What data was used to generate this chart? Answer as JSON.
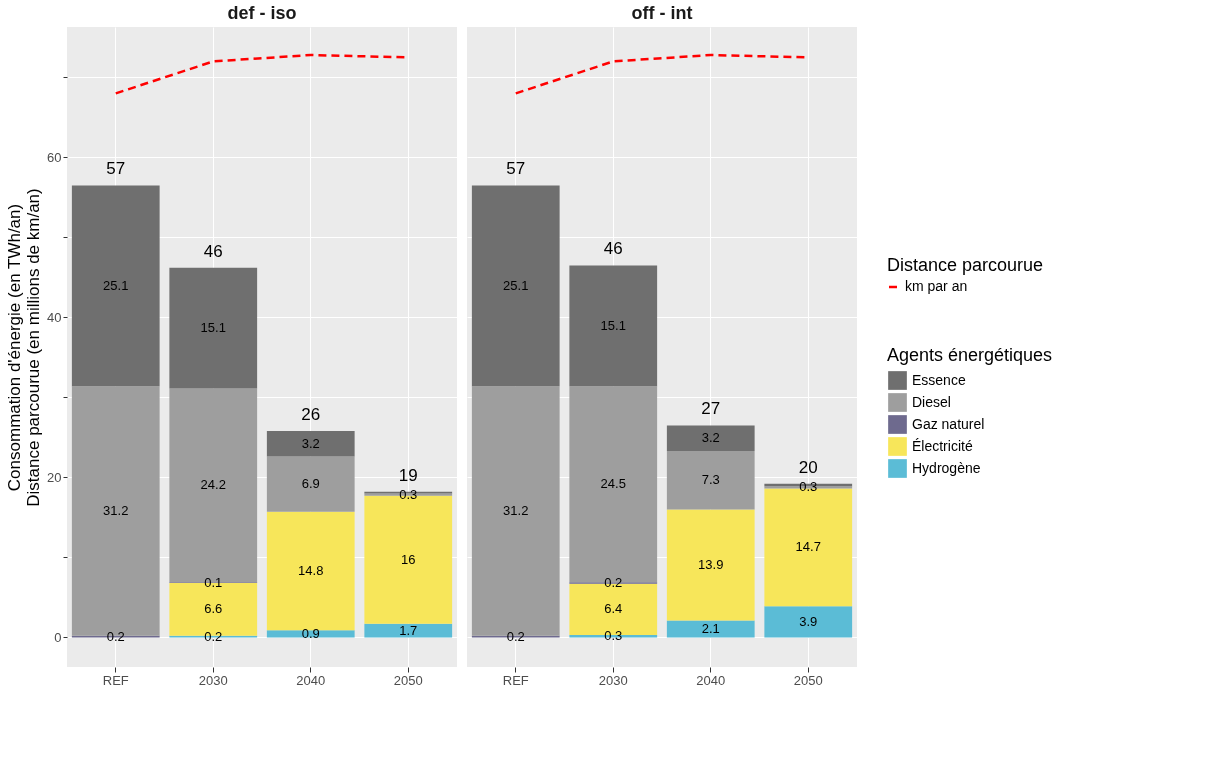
{
  "chart_data": [
    {
      "type": "bar",
      "title": "def - iso",
      "ylabel": "Consommation d'énergie (en TWh/an)\nDistance parcourue (en millions de km/an)",
      "legend_title": [
        "Distance parcourue",
        "Agents énergétiques"
      ],
      "legend": "right",
      "stacked": true,
      "grid": true,
      "categories": [
        "REF",
        "2030",
        "2040",
        "2050"
      ],
      "ylim": [
        -3.7,
        76.3
      ],
      "yticks": [
        0,
        {
          "value": 10,
          "label": null
        },
        20,
        {
          "value": 30,
          "label": null
        },
        40,
        {
          "value": 50,
          "label": null
        },
        60,
        {
          "value": 70,
          "label": null
        }
      ],
      "series": [
        {
          "name": "Hydrogène",
          "color": "#5bbcd6",
          "values": [
            null,
            0.2,
            0.9,
            1.7
          ],
          "value_labels": [
            null,
            "0.2",
            "0.9",
            "1.7"
          ]
        },
        {
          "name": "Électricité",
          "color": "#f7e65a",
          "values": [
            null,
            6.6,
            14.8,
            16
          ],
          "value_labels": [
            null,
            "6.6",
            "14.8",
            "16"
          ]
        },
        {
          "name": "Gaz naturel",
          "color": "#6e6a8e",
          "values": [
            0.2,
            0.1,
            null,
            null
          ],
          "value_labels": [
            "0.2",
            "0.1",
            null,
            null
          ]
        },
        {
          "name": "Diesel",
          "color": "#9e9e9e",
          "values": [
            31.2,
            24.2,
            6.9,
            0.3
          ],
          "value_labels": [
            "31.2",
            "24.2",
            "6.9",
            "0.3"
          ]
        },
        {
          "name": "Essence",
          "color": "#6f6f6f",
          "values": [
            25.1,
            15.1,
            3.2,
            0.2
          ],
          "value_labels": [
            "25.1",
            "15.1",
            "3.2",
            null
          ]
        },
        {
          "name": "km par an",
          "type": "line",
          "line_style": "dashed",
          "color": "#ff0000",
          "values": [
            68,
            72,
            72.8,
            72.5
          ]
        }
      ],
      "totals": [
        "57",
        "46",
        "26",
        "19"
      ]
    },
    {
      "type": "bar",
      "title": "off - int",
      "stacked": true,
      "grid": true,
      "tick_labels": "x",
      "categories": [
        "REF",
        "2030",
        "2040",
        "2050"
      ],
      "ylim": [
        -3.7,
        76.3
      ],
      "yticks": [
        0,
        {
          "value": 10,
          "label": null
        },
        20,
        {
          "value": 30,
          "label": null
        },
        40,
        {
          "value": 50,
          "label": null
        },
        60,
        {
          "value": 70,
          "label": null
        }
      ],
      "series": [
        {
          "name": "Hydrogène",
          "color": "#5bbcd6",
          "values": [
            null,
            0.3,
            2.1,
            3.9
          ],
          "value_labels": [
            null,
            "0.3",
            "2.1",
            "3.9"
          ]
        },
        {
          "name": "Électricité",
          "color": "#f7e65a",
          "values": [
            null,
            6.4,
            13.9,
            14.7
          ],
          "value_labels": [
            null,
            "6.4",
            "13.9",
            "14.7"
          ]
        },
        {
          "name": "Gaz naturel",
          "color": "#6e6a8e",
          "values": [
            0.2,
            0.2,
            null,
            null
          ],
          "value_labels": [
            "0.2",
            "0.2",
            null,
            null
          ]
        },
        {
          "name": "Diesel",
          "color": "#9e9e9e",
          "values": [
            31.2,
            24.5,
            7.3,
            0.3
          ],
          "value_labels": [
            "31.2",
            "24.5",
            "7.3",
            "0.3"
          ]
        },
        {
          "name": "Essence",
          "color": "#6f6f6f",
          "values": [
            25.1,
            15.1,
            3.2,
            0.3
          ],
          "value_labels": [
            "25.1",
            "15.1",
            "3.2",
            null
          ]
        },
        {
          "name": "km par an",
          "type": "line",
          "line_style": "dashed",
          "color": "#ff0000",
          "values": [
            68,
            72,
            72.8,
            72.5
          ]
        }
      ],
      "totals": [
        "57",
        "46",
        "27",
        "20"
      ]
    }
  ]
}
